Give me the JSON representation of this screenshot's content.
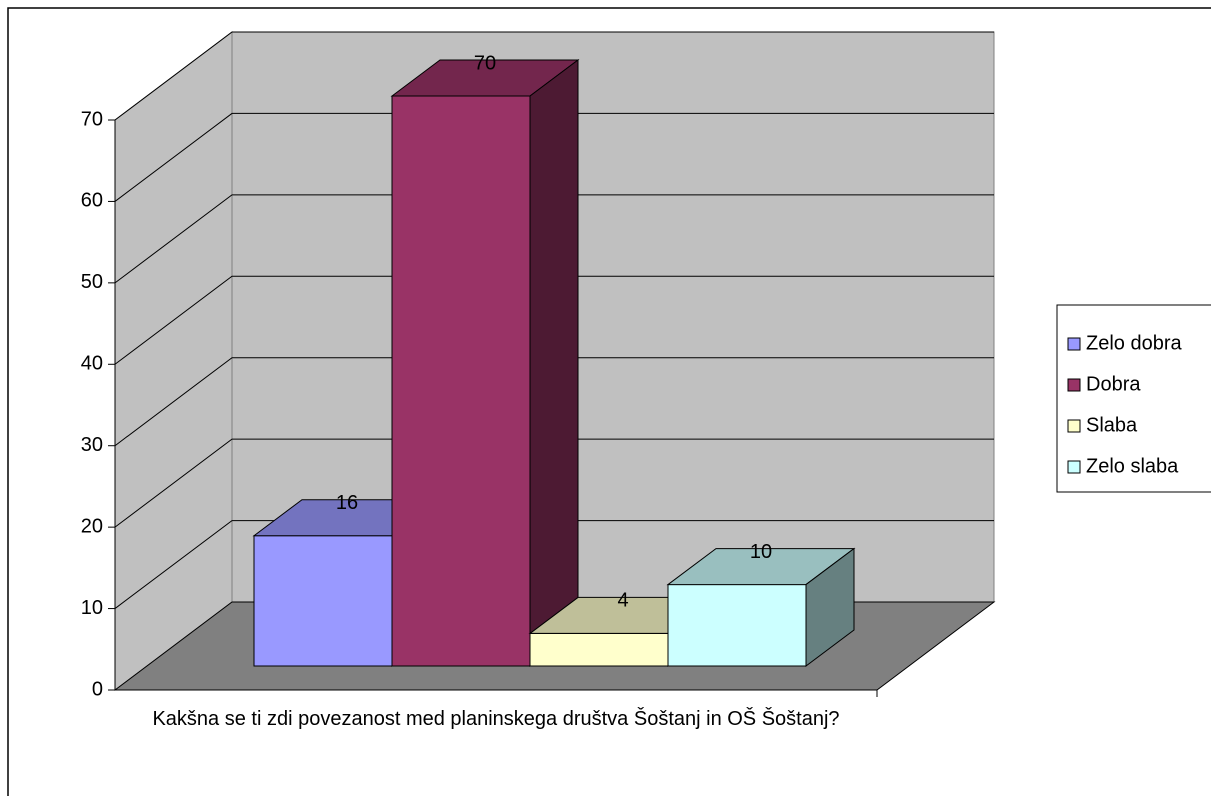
{
  "chart_data": {
    "type": "bar3d",
    "categories": [
      "Kakšna se ti zdi povezanost med planinskega društva Šoštanj in OŠ Šoštanj?"
    ],
    "series": [
      {
        "name": "Zelo dobra",
        "color": "#9999ff",
        "values": [
          16
        ]
      },
      {
        "name": "Dobra",
        "color": "#993366",
        "values": [
          70
        ]
      },
      {
        "name": "Slaba",
        "color": "#ffffcc",
        "values": [
          4
        ]
      },
      {
        "name": "Zelo slaba",
        "color": "#ccffff",
        "values": [
          10
        ]
      }
    ],
    "ylim": [
      0,
      70
    ],
    "yticks": [
      0,
      10,
      20,
      30,
      40,
      50,
      60,
      70
    ],
    "grid": true,
    "legend": "right"
  }
}
